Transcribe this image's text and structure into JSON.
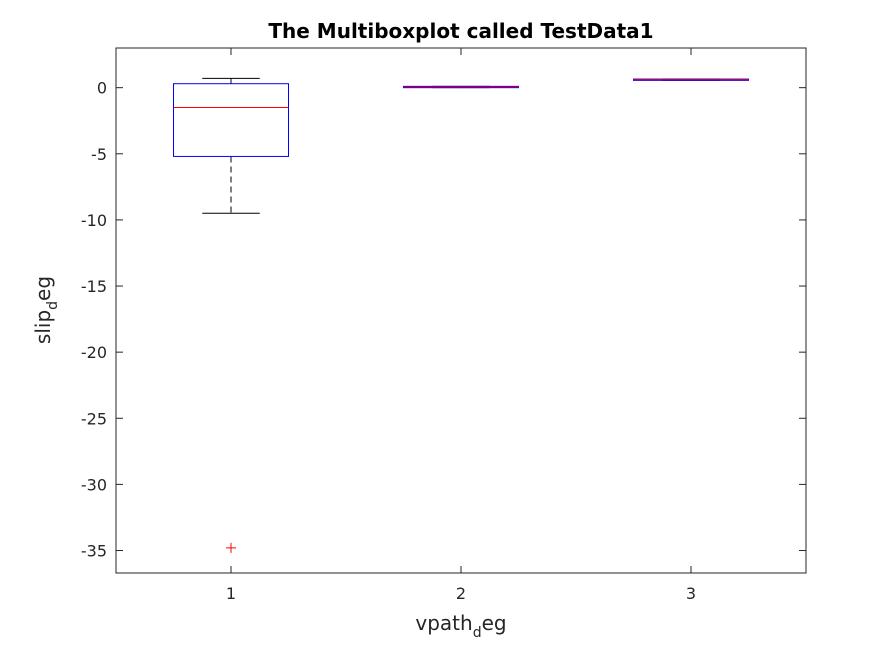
{
  "chart_data": {
    "type": "boxplot",
    "title": "The Multiboxplot called TestData1",
    "xlabel": {
      "base": "vpath",
      "subscript": "d",
      "rest": "eg"
    },
    "ylabel": {
      "base": "slip",
      "subscript": "d",
      "rest": "eg"
    },
    "categories": [
      "1",
      "2",
      "3"
    ],
    "xlim": [
      0.5,
      3.5
    ],
    "ylim": [
      -36.7,
      3.0
    ],
    "yticks": [
      0,
      -5,
      -10,
      -15,
      -20,
      -25,
      -30,
      -35
    ],
    "grid": false,
    "boxes": [
      {
        "category": "1",
        "whisker_low": -9.5,
        "q1": -5.2,
        "median": -1.5,
        "q3": 0.3,
        "whisker_high": 0.7,
        "outliers": [
          -34.8
        ]
      },
      {
        "category": "2",
        "whisker_low": 0.0,
        "q1": 0.0,
        "median": 0.05,
        "q3": 0.1,
        "whisker_high": 0.1,
        "outliers": []
      },
      {
        "category": "3",
        "whisker_low": 0.55,
        "q1": 0.55,
        "median": 0.6,
        "q3": 0.65,
        "whisker_high": 0.65,
        "outliers": []
      }
    ],
    "colors": {
      "box": "#0000ff",
      "median": "#ff0000",
      "whisker": "#000000",
      "outlier": "#ff0000",
      "axis": "#262626"
    }
  }
}
